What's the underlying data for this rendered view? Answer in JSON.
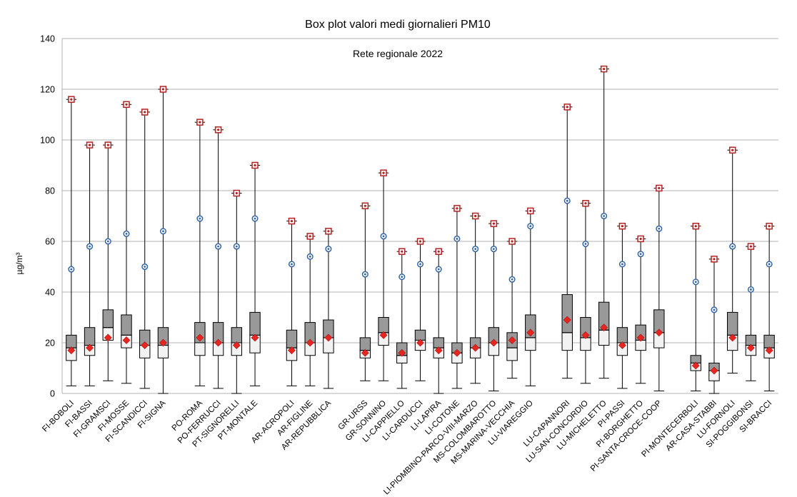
{
  "chart_data": {
    "type": "boxplot",
    "title": "Box plot valori medi giornalieri PM10",
    "subtitle": "Rete regionale 2022",
    "ylabel": "µg/m³",
    "xlabel": "",
    "ylim": [
      0,
      140
    ],
    "yticks": [
      0,
      20,
      40,
      60,
      80,
      100,
      120,
      140
    ],
    "grid": true,
    "groups": [
      {
        "stations": [
          {
            "name": "FI-BOBOLI",
            "min": 3,
            "q1": 13,
            "median": 18,
            "q3": 23,
            "mean": 17,
            "p90": 49,
            "max": 116
          },
          {
            "name": "FI-BASSI",
            "min": 3,
            "q1": 15,
            "median": 19,
            "q3": 26,
            "mean": 18,
            "p90": 58,
            "max": 98
          },
          {
            "name": "FI-GRAMSCI",
            "min": 5,
            "q1": 21,
            "median": 26,
            "q3": 33,
            "mean": 22,
            "p90": 60,
            "max": 98
          },
          {
            "name": "FI-MOSSE",
            "min": 4,
            "q1": 18,
            "median": 23,
            "q3": 31,
            "mean": 21,
            "p90": 63,
            "max": 114
          },
          {
            "name": "FI-SCANDICCI",
            "min": 2,
            "q1": 14,
            "median": 19,
            "q3": 25,
            "mean": 19,
            "p90": 50,
            "max": 111
          },
          {
            "name": "FI-SIGNA",
            "min": 0,
            "q1": 14,
            "median": 19,
            "q3": 26,
            "mean": 20,
            "p90": 64,
            "max": 120
          }
        ]
      },
      {
        "stations": [
          {
            "name": "PO-ROMA",
            "min": 3,
            "q1": 15,
            "median": 20,
            "q3": 28,
            "mean": 22,
            "p90": 69,
            "max": 107
          },
          {
            "name": "PO-FERRUCCI",
            "min": 2,
            "q1": 15,
            "median": 20,
            "q3": 28,
            "mean": 20,
            "p90": 58,
            "max": 104
          },
          {
            "name": "PT-SIGNORELLI",
            "min": 0,
            "q1": 15,
            "median": 20,
            "q3": 26,
            "mean": 19,
            "p90": 58,
            "max": 79
          },
          {
            "name": "PT-MONTALE",
            "min": 3,
            "q1": 16,
            "median": 23,
            "q3": 32,
            "mean": 22,
            "p90": 69,
            "max": 90
          }
        ]
      },
      {
        "stations": [
          {
            "name": "AR-ACROPOLI",
            "min": 3,
            "q1": 13,
            "median": 18,
            "q3": 25,
            "mean": 17,
            "p90": 51,
            "max": 68
          },
          {
            "name": "AR-FIGLINE",
            "min": 3,
            "q1": 15,
            "median": 20,
            "q3": 28,
            "mean": 20,
            "p90": 54,
            "max": 62
          },
          {
            "name": "AR-REPUBBLICA",
            "min": 2,
            "q1": 16,
            "median": 22,
            "q3": 29,
            "mean": 22,
            "p90": 57,
            "max": 64
          }
        ]
      },
      {
        "stations": [
          {
            "name": "GR-URSS",
            "min": 5,
            "q1": 14,
            "median": 17,
            "q3": 22,
            "mean": 16,
            "p90": 47,
            "max": 74
          },
          {
            "name": "GR-SONNINO",
            "min": 5,
            "q1": 19,
            "median": 24,
            "q3": 30,
            "mean": 23,
            "p90": 62,
            "max": 87
          },
          {
            "name": "LI-CAPPIELLO",
            "min": 2,
            "q1": 12,
            "median": 15,
            "q3": 20,
            "mean": 16,
            "p90": 46,
            "max": 56
          },
          {
            "name": "LI-CARDUCCI",
            "min": 5,
            "q1": 17,
            "median": 21,
            "q3": 25,
            "mean": 20,
            "p90": 51,
            "max": 60
          },
          {
            "name": "LI-LAPIRA",
            "min": 0,
            "q1": 14,
            "median": 18,
            "q3": 22,
            "mean": 17,
            "p90": 49,
            "max": 56
          },
          {
            "name": "LI-COTONE",
            "min": 2,
            "q1": 12,
            "median": 16,
            "q3": 20,
            "mean": 16,
            "p90": 61,
            "max": 73
          },
          {
            "name": "LI-PIOMBINO-PARCO-VIII-MARZO",
            "min": 4,
            "q1": 14,
            "median": 18,
            "q3": 22,
            "mean": 18,
            "p90": 57,
            "max": 70
          },
          {
            "name": "MS-COLOMBAROTTO",
            "min": 1,
            "q1": 15,
            "median": 20,
            "q3": 26,
            "mean": 20,
            "p90": 57,
            "max": 67
          },
          {
            "name": "MS-MARINA-VECCHIA",
            "min": 6,
            "q1": 13,
            "median": 18,
            "q3": 24,
            "mean": 21,
            "p90": 45,
            "max": 60
          },
          {
            "name": "LU-VIAREGGIO",
            "min": 3,
            "q1": 17,
            "median": 22,
            "q3": 31,
            "mean": 24,
            "p90": 66,
            "max": 72
          }
        ]
      },
      {
        "stations": [
          {
            "name": "LU-CAPANNORI",
            "min": 6,
            "q1": 17,
            "median": 24,
            "q3": 39,
            "mean": 29,
            "p90": 76,
            "max": 113
          },
          {
            "name": "LU-SAN-CONCORDIO",
            "min": 4,
            "q1": 17,
            "median": 22,
            "q3": 30,
            "mean": 23,
            "p90": 59,
            "max": 75
          },
          {
            "name": "LU-MICHELETTO",
            "min": 6,
            "q1": 19,
            "median": 25,
            "q3": 36,
            "mean": 26,
            "p90": 70,
            "max": 128
          },
          {
            "name": "PI-PASSI",
            "min": 2,
            "q1": 15,
            "median": 20,
            "q3": 26,
            "mean": 19,
            "p90": 51,
            "max": 66
          },
          {
            "name": "PI-BORGHETTO",
            "min": 4,
            "q1": 17,
            "median": 21,
            "q3": 27,
            "mean": 22,
            "p90": 55,
            "max": 61
          },
          {
            "name": "PI-SANTA-CROCE-COOP",
            "min": 1,
            "q1": 18,
            "median": 24,
            "q3": 33,
            "mean": 24,
            "p90": 65,
            "max": 81
          }
        ]
      },
      {
        "stations": [
          {
            "name": "PI-MONTECERBOLI",
            "min": 1,
            "q1": 9,
            "median": 12,
            "q3": 15,
            "mean": 11,
            "p90": 44,
            "max": 66
          },
          {
            "name": "AR-CASA-STABBI",
            "min": 0,
            "q1": 5,
            "median": 9,
            "q3": 12,
            "mean": 9,
            "p90": 33,
            "max": 53
          },
          {
            "name": "LU-FORNOLI",
            "min": 8,
            "q1": 17,
            "median": 23,
            "q3": 32,
            "mean": 22,
            "p90": 58,
            "max": 96
          },
          {
            "name": "SI-POGGIBONSI",
            "min": 5,
            "q1": 15,
            "median": 19,
            "q3": 23,
            "mean": 18,
            "p90": 41,
            "max": 58
          },
          {
            "name": "SI-BRACCI",
            "min": 1,
            "q1": 14,
            "median": 18,
            "q3": 23,
            "mean": 17,
            "p90": 51,
            "max": 66
          }
        ]
      }
    ],
    "colors": {
      "upper_box": "#999999",
      "lower_box": "#f2f2f2",
      "max_marker": "#b22222",
      "p90_marker": "#3465a4",
      "mean_marker": "#e8251f",
      "grid": "#b3b3b3"
    }
  }
}
